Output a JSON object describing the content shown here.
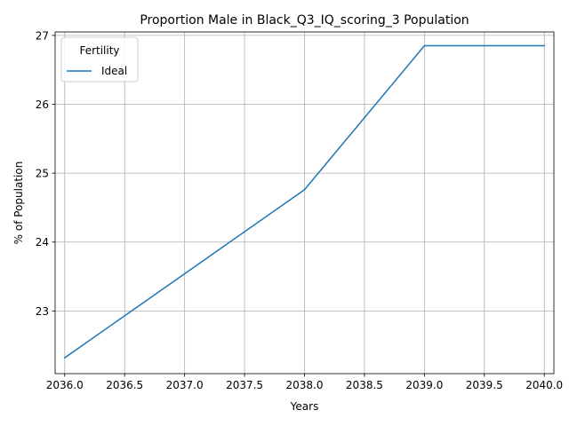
{
  "chart_data": {
    "type": "line",
    "title": "Proportion Male in Black_Q3_IQ_scoring_3 Population",
    "xlabel": "Years",
    "ylabel": "% of Population",
    "xlim": [
      2035.92,
      2040.08
    ],
    "ylim": [
      22.09,
      27.05
    ],
    "xticks": [
      "2036.0",
      "2036.5",
      "2037.0",
      "2037.5",
      "2038.0",
      "2038.5",
      "2039.0",
      "2039.5",
      "2040.0"
    ],
    "xtick_values": [
      2036.0,
      2036.5,
      2037.0,
      2037.5,
      2038.0,
      2038.5,
      2039.0,
      2039.5,
      2040.0
    ],
    "yticks": [
      "23",
      "24",
      "25",
      "26",
      "27"
    ],
    "ytick_values": [
      23,
      24,
      25,
      26,
      27
    ],
    "grid": true,
    "legend": {
      "title": "Fertility",
      "position": "upper left"
    },
    "series": [
      {
        "name": "Ideal",
        "color": "#1f77b4",
        "x": [
          2036,
          2037,
          2038,
          2039,
          2040
        ],
        "y": [
          22.32,
          23.54,
          24.76,
          26.85,
          26.85
        ]
      }
    ]
  }
}
